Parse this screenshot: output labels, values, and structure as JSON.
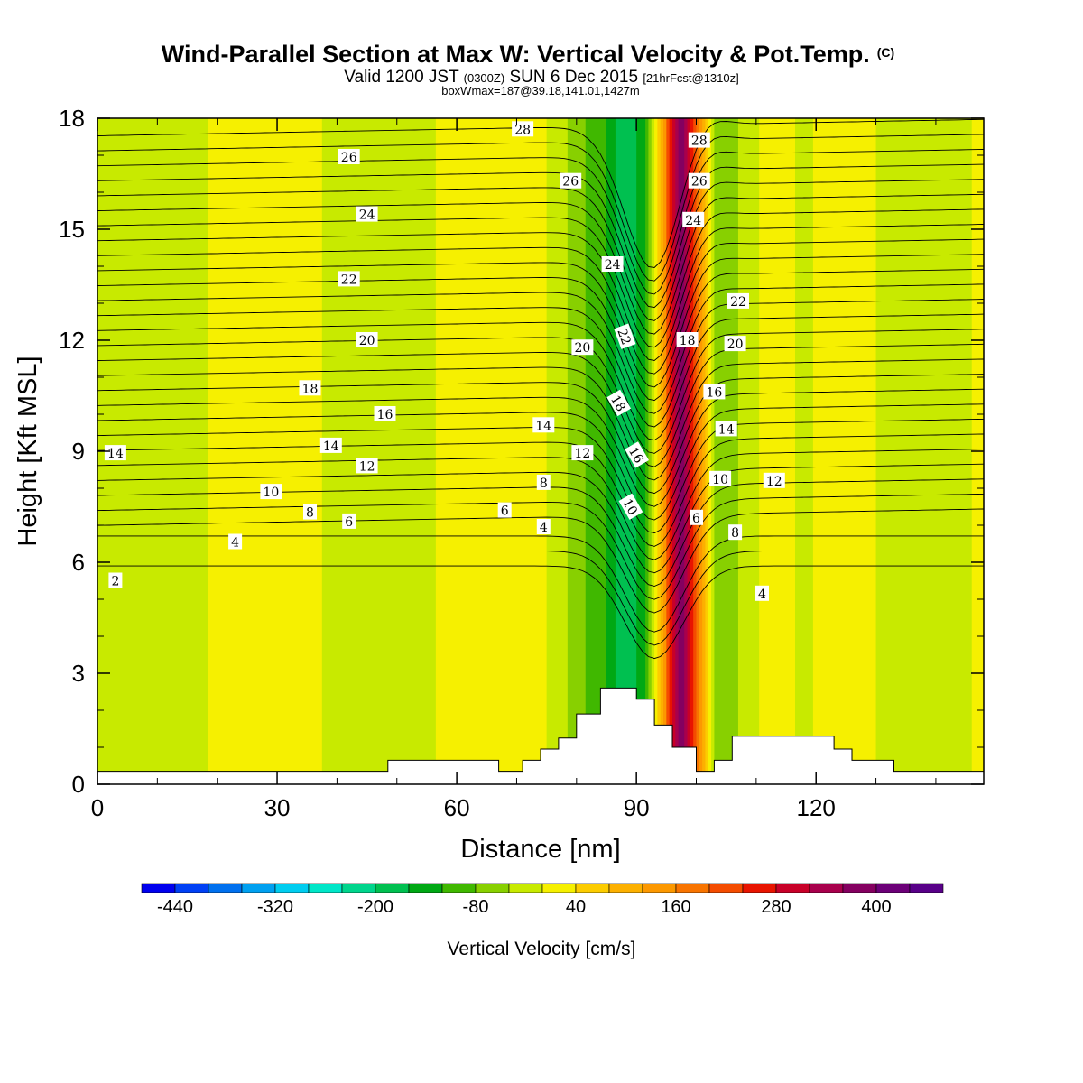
{
  "chart_data": {
    "type": "heatmap",
    "title": "Wind-Parallel Section at Max W: Vertical Velocity & Pot.Temp.",
    "title_mark": "(C)",
    "subtitle_prefix": "Valid 1200 JST",
    "subtitle_utc": "(0300Z)",
    "subtitle_date": "SUN 6 Dec 2015",
    "subtitle_fcst": "[21hrFcst@1310z]",
    "box_info": "boxWmax=187@39.18,141.01,1427m",
    "xlabel": "Distance [nm]",
    "ylabel": "Height [Kft MSL]",
    "xlim": [
      0,
      148
    ],
    "ylim": [
      0,
      18
    ],
    "x_ticks": [
      0,
      30,
      60,
      90,
      120
    ],
    "y_ticks": [
      0,
      3,
      6,
      9,
      12,
      15,
      18
    ],
    "colorbar": {
      "label": "Vertical Velocity [cm/s]",
      "min": -480,
      "max": 480,
      "step": 40,
      "tick_labels": [
        -440,
        -320,
        -200,
        -80,
        40,
        160,
        280,
        400
      ],
      "colors": [
        "#0000ee",
        "#0040f5",
        "#0070ee",
        "#00a0f0",
        "#00cdf0",
        "#00e6c8",
        "#00d58c",
        "#00c050",
        "#00a814",
        "#40b800",
        "#88d000",
        "#c8ea00",
        "#f6f000",
        "#fccc00",
        "#fcb000",
        "#fc9800",
        "#f87400",
        "#f44c00",
        "#e81400",
        "#c80028",
        "#a8004c",
        "#840060",
        "#6c0078",
        "#580088"
      ]
    },
    "w_field": [
      {
        "x": 0,
        "w": -10
      },
      {
        "x": 10,
        "w": -30
      },
      {
        "x": 20,
        "w": 5
      },
      {
        "x": 35,
        "w": 10
      },
      {
        "x": 42,
        "w": -20
      },
      {
        "x": 50,
        "w": -40
      },
      {
        "x": 58,
        "w": 10
      },
      {
        "x": 66,
        "w": 30
      },
      {
        "x": 74,
        "w": 10
      },
      {
        "x": 80,
        "w": -60
      },
      {
        "x": 85,
        "w": -120
      },
      {
        "x": 88,
        "w": -200
      },
      {
        "x": 91,
        "w": -140
      },
      {
        "x": 94,
        "w": 80
      },
      {
        "x": 96,
        "w": 280
      },
      {
        "x": 97.5,
        "w": 420
      },
      {
        "x": 99,
        "w": 280
      },
      {
        "x": 101,
        "w": 100
      },
      {
        "x": 103,
        "w": -40
      },
      {
        "x": 105,
        "w": -80
      },
      {
        "x": 108,
        "w": -20
      },
      {
        "x": 113,
        "w": 20
      },
      {
        "x": 118,
        "w": -10
      },
      {
        "x": 125,
        "w": 30
      },
      {
        "x": 133,
        "w": -20
      },
      {
        "x": 140,
        "w": -30
      },
      {
        "x": 148,
        "w": 10
      }
    ],
    "terrain": [
      [
        0,
        0.35
      ],
      [
        48.5,
        0.35
      ],
      [
        48.5,
        0.65
      ],
      [
        67,
        0.65
      ],
      [
        67,
        0.35
      ],
      [
        71,
        0.35
      ],
      [
        71,
        0.65
      ],
      [
        74,
        0.65
      ],
      [
        74,
        0.95
      ],
      [
        77,
        0.95
      ],
      [
        77,
        1.25
      ],
      [
        80,
        1.25
      ],
      [
        80,
        1.9
      ],
      [
        84,
        1.9
      ],
      [
        84,
        2.6
      ],
      [
        90,
        2.6
      ],
      [
        90,
        2.3
      ],
      [
        93,
        2.3
      ],
      [
        93,
        1.6
      ],
      [
        96,
        1.6
      ],
      [
        96,
        1.0
      ],
      [
        100,
        1.0
      ],
      [
        100,
        0.35
      ],
      [
        103,
        0.35
      ],
      [
        103,
        0.65
      ],
      [
        106,
        0.65
      ],
      [
        106,
        1.3
      ],
      [
        123,
        1.3
      ],
      [
        123,
        0.95
      ],
      [
        126,
        0.95
      ],
      [
        126,
        0.65
      ],
      [
        133,
        0.65
      ],
      [
        133,
        0.35
      ],
      [
        148,
        0.35
      ]
    ],
    "theta_labels": [
      {
        "x": 3,
        "y": 8.95,
        "t": "14"
      },
      {
        "x": 3,
        "y": 5.5,
        "t": "2"
      },
      {
        "x": 23,
        "y": 6.55,
        "t": "4"
      },
      {
        "x": 29,
        "y": 7.9,
        "t": "10"
      },
      {
        "x": 35.5,
        "y": 7.35,
        "t": "8"
      },
      {
        "x": 42,
        "y": 7.1,
        "t": "6"
      },
      {
        "x": 39,
        "y": 9.15,
        "t": "14"
      },
      {
        "x": 45,
        "y": 8.6,
        "t": "12"
      },
      {
        "x": 48,
        "y": 10.0,
        "t": "16"
      },
      {
        "x": 35.5,
        "y": 10.7,
        "t": "18"
      },
      {
        "x": 45,
        "y": 12.0,
        "t": "20"
      },
      {
        "x": 42,
        "y": 13.65,
        "t": "22"
      },
      {
        "x": 45,
        "y": 15.4,
        "t": "24"
      },
      {
        "x": 42,
        "y": 16.95,
        "t": "26"
      },
      {
        "x": 71,
        "y": 17.7,
        "t": "28"
      },
      {
        "x": 79,
        "y": 16.3,
        "t": "26"
      },
      {
        "x": 86,
        "y": 14.05,
        "t": "24"
      },
      {
        "x": 88,
        "y": 12.1,
        "t": "22",
        "r": 70
      },
      {
        "x": 81,
        "y": 11.8,
        "t": "20"
      },
      {
        "x": 87,
        "y": 10.3,
        "t": "18",
        "r": 60
      },
      {
        "x": 90,
        "y": 8.9,
        "t": "16",
        "r": 60
      },
      {
        "x": 81,
        "y": 8.95,
        "t": "12"
      },
      {
        "x": 74.5,
        "y": 9.7,
        "t": "14"
      },
      {
        "x": 74.5,
        "y": 8.15,
        "t": "8"
      },
      {
        "x": 68,
        "y": 7.4,
        "t": "6"
      },
      {
        "x": 74.5,
        "y": 6.95,
        "t": "4"
      },
      {
        "x": 89,
        "y": 7.5,
        "t": "10",
        "r": 60
      },
      {
        "x": 100.5,
        "y": 17.4,
        "t": "28"
      },
      {
        "x": 100.5,
        "y": 16.3,
        "t": "26"
      },
      {
        "x": 99.5,
        "y": 15.25,
        "t": "24"
      },
      {
        "x": 107,
        "y": 13.05,
        "t": "22"
      },
      {
        "x": 98.5,
        "y": 12.0,
        "t": "18"
      },
      {
        "x": 106.5,
        "y": 11.9,
        "t": "20"
      },
      {
        "x": 103,
        "y": 10.6,
        "t": "16"
      },
      {
        "x": 105,
        "y": 9.6,
        "t": "14"
      },
      {
        "x": 104,
        "y": 8.25,
        "t": "10"
      },
      {
        "x": 113,
        "y": 8.2,
        "t": "12"
      },
      {
        "x": 100,
        "y": 7.2,
        "t": "6"
      },
      {
        "x": 106.5,
        "y": 6.8,
        "t": "8"
      },
      {
        "x": 111,
        "y": 5.15,
        "t": "4"
      }
    ]
  }
}
